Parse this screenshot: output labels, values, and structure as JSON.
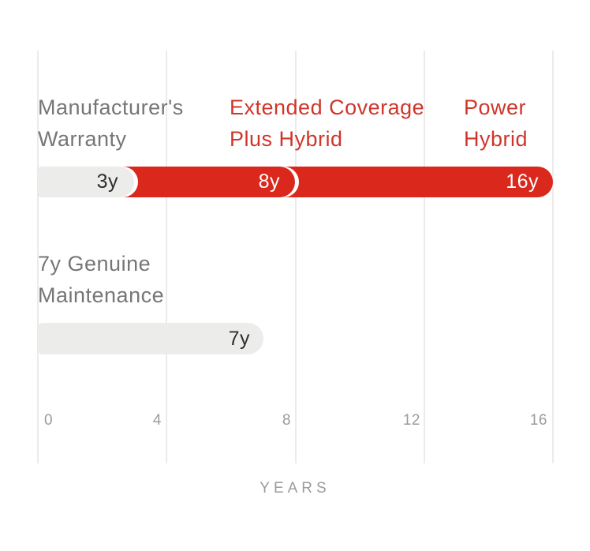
{
  "chart_data": {
    "type": "bar",
    "orientation": "horizontal",
    "title": "",
    "xlabel": "YEARS",
    "xlim": [
      0,
      16
    ],
    "x_ticks": [
      "0",
      "4",
      "8",
      "12",
      "16"
    ],
    "grid": "vertical",
    "unit": "years",
    "rows": [
      {
        "header_labels": [
          {
            "line1": "Manufacturer's",
            "line2": "Warranty",
            "color": "#767676"
          },
          {
            "line1": "Extended Coverage",
            "line2": "Plus Hybrid",
            "color": "#d0352a"
          },
          {
            "line1": "Power",
            "line2": "Hybrid",
            "color": "#d0352a"
          }
        ],
        "segments": [
          {
            "name": "Manufacturer's Warranty",
            "value": 3,
            "label": "3y",
            "color": "#ececea"
          },
          {
            "name": "Extended Coverage Plus Hybrid",
            "value": 8,
            "label": "8y",
            "color": "#da291c"
          },
          {
            "name": "Power Hybrid",
            "value": 16,
            "label": "16y",
            "color": "#da291c"
          }
        ]
      },
      {
        "header_labels": [
          {
            "line1": "7y Genuine",
            "line2": "Maintenance",
            "color": "#767676"
          }
        ],
        "segments": [
          {
            "name": "Genuine Maintenance",
            "value": 7,
            "label": "7y",
            "color": "#ececea"
          }
        ]
      }
    ]
  },
  "colors": {
    "accent_red": "#da291c",
    "red_text": "#d0352a",
    "bar_gray": "#ececea",
    "bar_dark_text": "#2e2e2e",
    "label_gray": "#767676",
    "axis_gray": "#9b9b9b",
    "gridline": "#ebebeb",
    "background": "#ffffff"
  }
}
